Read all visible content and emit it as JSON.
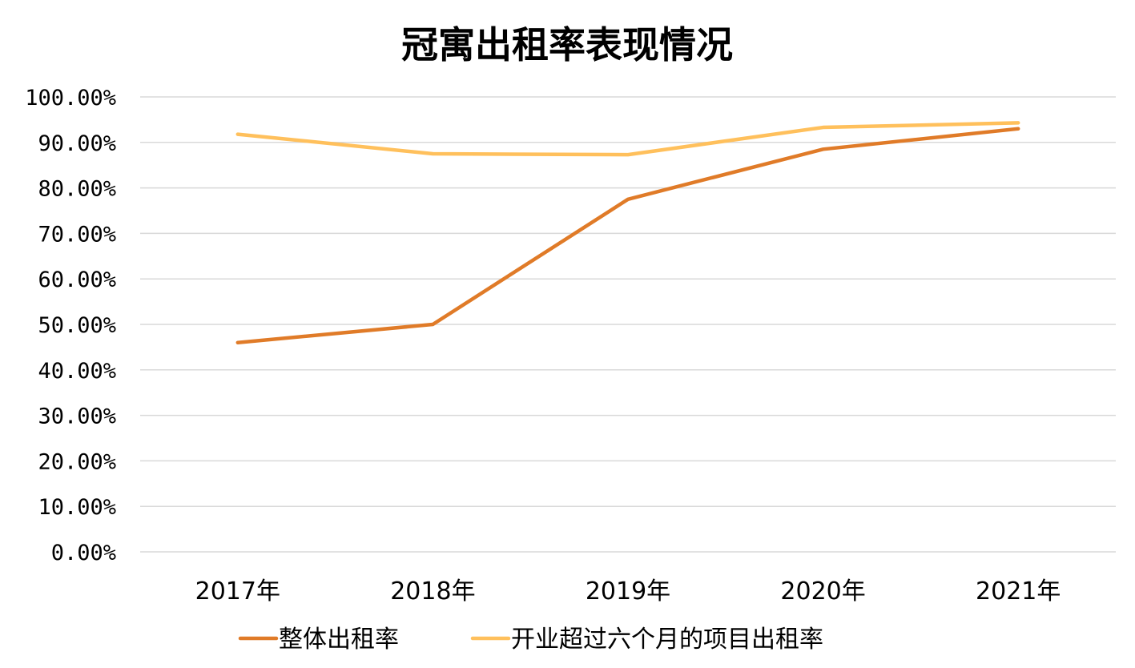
{
  "chart_data": {
    "type": "line",
    "title": "冠寓出租率表现情况",
    "xlabel": "",
    "ylabel": "",
    "categories": [
      "2017年",
      "2018年",
      "2019年",
      "2020年",
      "2021年"
    ],
    "y_ticks": [
      "0.00%",
      "10.00%",
      "20.00%",
      "30.00%",
      "40.00%",
      "50.00%",
      "60.00%",
      "70.00%",
      "80.00%",
      "90.00%",
      "100.00%"
    ],
    "ylim": [
      0,
      100
    ],
    "grid": true,
    "legend_position": "bottom",
    "series": [
      {
        "name": "整体出租率",
        "values": [
          46,
          50,
          77.5,
          88.5,
          93
        ],
        "color": "#e07b28"
      },
      {
        "name": "开业超过六个月的项目出租率",
        "values": [
          91.8,
          87.5,
          87.3,
          93.3,
          94.3
        ],
        "color": "#ffc05c"
      }
    ]
  }
}
